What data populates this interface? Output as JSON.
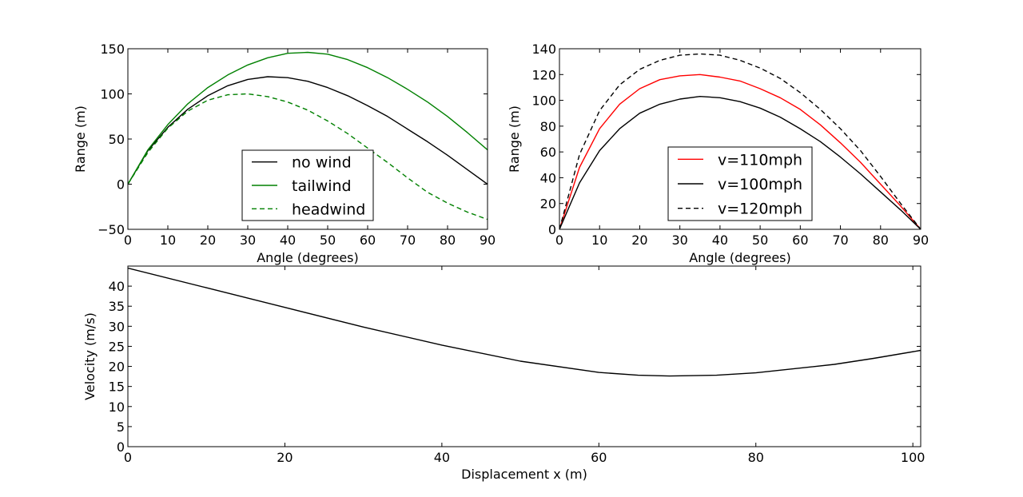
{
  "chart_data": [
    {
      "type": "line",
      "xlabel": "Angle (degrees)",
      "ylabel": "Range (m)",
      "xlim": [
        0,
        90
      ],
      "ylim": [
        -50,
        150
      ],
      "xticks": [
        "0",
        "10",
        "20",
        "30",
        "40",
        "50",
        "60",
        "70",
        "80",
        "90"
      ],
      "yticks": [
        "−50",
        "0",
        "50",
        "100",
        "150"
      ],
      "grid": false,
      "legend_position": "lower-center",
      "series": [
        {
          "name": "no wind",
          "color": "#000000",
          "dash": "solid",
          "x": [
            0,
            5,
            10,
            15,
            20,
            25,
            30,
            35,
            40,
            45,
            50,
            55,
            60,
            65,
            70,
            75,
            80,
            85,
            90
          ],
          "y": [
            0,
            37,
            63,
            83,
            98,
            109,
            116,
            119,
            118,
            114,
            107,
            98,
            87,
            75,
            61,
            47,
            32,
            16,
            0
          ]
        },
        {
          "name": "tailwind",
          "color": "#008000",
          "dash": "solid",
          "x": [
            0,
            5,
            10,
            15,
            20,
            25,
            30,
            35,
            40,
            45,
            50,
            55,
            60,
            65,
            70,
            75,
            80,
            85,
            90
          ],
          "y": [
            0,
            38,
            66,
            89,
            107,
            121,
            132,
            140,
            145,
            146,
            144,
            138,
            129,
            118,
            105,
            91,
            75,
            57,
            38
          ]
        },
        {
          "name": "headwind",
          "color": "#008000",
          "dash": "dashed",
          "x": [
            0,
            5,
            10,
            15,
            20,
            25,
            30,
            35,
            40,
            45,
            50,
            55,
            60,
            65,
            70,
            75,
            80,
            85,
            90
          ],
          "y": [
            0,
            35,
            62,
            81,
            93,
            99,
            100,
            97,
            91,
            82,
            70,
            56,
            40,
            24,
            7,
            -9,
            -21,
            -31,
            -39
          ]
        }
      ]
    },
    {
      "type": "line",
      "xlabel": "Angle (degrees)",
      "ylabel": "Range (m)",
      "xlim": [
        0,
        90
      ],
      "ylim": [
        0,
        140
      ],
      "xticks": [
        "0",
        "10",
        "20",
        "30",
        "40",
        "50",
        "60",
        "70",
        "80",
        "90"
      ],
      "yticks": [
        "0",
        "20",
        "40",
        "60",
        "80",
        "100",
        "120",
        "140"
      ],
      "grid": false,
      "legend_position": "lower-center",
      "series": [
        {
          "name": "v=110mph",
          "color": "#ff0000",
          "dash": "solid",
          "x": [
            0,
            5,
            10,
            15,
            20,
            25,
            30,
            35,
            40,
            45,
            50,
            55,
            60,
            65,
            70,
            75,
            80,
            85,
            90
          ],
          "y": [
            0,
            48,
            78,
            97,
            109,
            116,
            119,
            120,
            118,
            115,
            109,
            102,
            93,
            81,
            67,
            52,
            35,
            18,
            0
          ]
        },
        {
          "name": "v=100mph",
          "color": "#000000",
          "dash": "solid",
          "x": [
            0,
            5,
            10,
            15,
            20,
            25,
            30,
            35,
            40,
            45,
            50,
            55,
            60,
            65,
            70,
            75,
            80,
            85,
            90
          ],
          "y": [
            0,
            36,
            61,
            78,
            90,
            97,
            101,
            103,
            102,
            99,
            94,
            87,
            78,
            68,
            56,
            43,
            29,
            15,
            0
          ]
        },
        {
          "name": "v=120mph",
          "color": "#000000",
          "dash": "dashed",
          "x": [
            0,
            5,
            10,
            15,
            20,
            25,
            30,
            35,
            40,
            45,
            50,
            55,
            60,
            65,
            70,
            75,
            80,
            85,
            90
          ],
          "y": [
            0,
            58,
            92,
            112,
            124,
            131,
            135,
            136,
            135,
            131,
            125,
            117,
            106,
            93,
            78,
            61,
            41,
            20,
            0
          ]
        }
      ]
    },
    {
      "type": "line",
      "xlabel": "Displacement x (m)",
      "ylabel": "Velocity (m/s)",
      "xlim": [
        0,
        101
      ],
      "ylim": [
        0,
        45
      ],
      "xticks": [
        "0",
        "20",
        "40",
        "60",
        "80",
        "100"
      ],
      "yticks": [
        "0",
        "5",
        "10",
        "15",
        "20",
        "25",
        "30",
        "35",
        "40"
      ],
      "grid": false,
      "series": [
        {
          "color": "#000000",
          "dash": "solid",
          "x": [
            0,
            10,
            20,
            30,
            40,
            50,
            60,
            65,
            69,
            75,
            80,
            90,
            95,
            101
          ],
          "y": [
            44.5,
            39.6,
            34.7,
            29.8,
            25.3,
            21.3,
            18.5,
            17.8,
            17.6,
            17.8,
            18.4,
            20.5,
            22.0,
            24.0
          ]
        }
      ]
    }
  ]
}
